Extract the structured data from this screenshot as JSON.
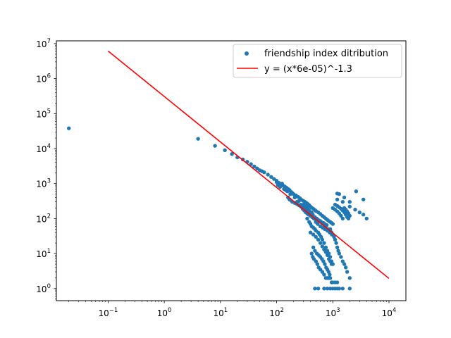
{
  "chart_data": {
    "type": "scatter",
    "title": "",
    "xlabel": "",
    "ylabel": "",
    "xscale": "log",
    "yscale": "log",
    "xlim": [
      0.012,
      20000
    ],
    "ylim": [
      0.45,
      12000000
    ],
    "grid": false,
    "legend_position": "top-right",
    "x_ticks": [
      {
        "base": "10",
        "exp": "−1",
        "value": 0.1
      },
      {
        "base": "10",
        "exp": "0",
        "value": 1
      },
      {
        "base": "10",
        "exp": "1",
        "value": 10
      },
      {
        "base": "10",
        "exp": "2",
        "value": 100
      },
      {
        "base": "10",
        "exp": "3",
        "value": 1000
      },
      {
        "base": "10",
        "exp": "4",
        "value": 10000
      }
    ],
    "y_ticks": [
      {
        "base": "10",
        "exp": "0",
        "value": 1
      },
      {
        "base": "10",
        "exp": "1",
        "value": 10
      },
      {
        "base": "10",
        "exp": "2",
        "value": 100
      },
      {
        "base": "10",
        "exp": "3",
        "value": 1000
      },
      {
        "base": "10",
        "exp": "4",
        "value": 10000
      },
      {
        "base": "10",
        "exp": "5",
        "value": 100000
      },
      {
        "base": "10",
        "exp": "6",
        "value": 1000000
      },
      {
        "base": "10",
        "exp": "7",
        "value": 10000000
      }
    ],
    "series": [
      {
        "name": "friendship index ditribution",
        "kind": "scatter",
        "color": "#1f77b4",
        "points": [
          [
            0.02,
            38000
          ],
          [
            4,
            19000
          ],
          [
            8,
            12000
          ],
          [
            12,
            9000
          ],
          [
            16,
            7000
          ],
          [
            20,
            5600
          ],
          [
            25,
            4900
          ],
          [
            30,
            4200
          ],
          [
            35,
            3600
          ],
          [
            40,
            3100
          ],
          [
            45,
            2700
          ],
          [
            50,
            2400
          ],
          [
            55,
            2250
          ],
          [
            60,
            2100
          ],
          [
            70,
            1800
          ],
          [
            80,
            1550
          ],
          [
            90,
            1350
          ],
          [
            100,
            1200
          ],
          [
            110,
            1050
          ],
          [
            120,
            950
          ],
          [
            130,
            880
          ],
          [
            140,
            820
          ],
          [
            150,
            760
          ],
          [
            160,
            700
          ],
          [
            170,
            650
          ],
          [
            180,
            580
          ],
          [
            190,
            540
          ],
          [
            200,
            500
          ],
          [
            220,
            460
          ],
          [
            240,
            420
          ],
          [
            260,
            380
          ],
          [
            280,
            340
          ],
          [
            300,
            320
          ],
          [
            320,
            300
          ],
          [
            340,
            280
          ],
          [
            360,
            260
          ],
          [
            380,
            240
          ],
          [
            400,
            220
          ],
          [
            420,
            205
          ],
          [
            450,
            190
          ],
          [
            480,
            175
          ],
          [
            500,
            165
          ],
          [
            550,
            150
          ],
          [
            600,
            135
          ],
          [
            650,
            120
          ],
          [
            700,
            110
          ],
          [
            750,
            100
          ],
          [
            800,
            92
          ],
          [
            850,
            85
          ],
          [
            900,
            80
          ],
          [
            950,
            75
          ],
          [
            1000,
            70
          ],
          [
            100,
            1100
          ],
          [
            105,
            900
          ],
          [
            115,
            800
          ],
          [
            125,
            1000
          ],
          [
            135,
            700
          ],
          [
            145,
            650
          ],
          [
            155,
            600
          ],
          [
            175,
            500
          ],
          [
            185,
            520
          ],
          [
            210,
            400
          ],
          [
            230,
            300
          ],
          [
            250,
            320
          ],
          [
            270,
            250
          ],
          [
            290,
            230
          ],
          [
            310,
            200
          ],
          [
            330,
            180
          ],
          [
            350,
            170
          ],
          [
            370,
            150
          ],
          [
            390,
            130
          ],
          [
            410,
            120
          ],
          [
            430,
            110
          ],
          [
            460,
            100
          ],
          [
            490,
            95
          ],
          [
            520,
            90
          ],
          [
            560,
            85
          ],
          [
            620,
            80
          ],
          [
            680,
            75
          ],
          [
            720,
            70
          ],
          [
            780,
            65
          ],
          [
            160,
            400
          ],
          [
            170,
            350
          ],
          [
            180,
            330
          ],
          [
            190,
            300
          ],
          [
            210,
            280
          ],
          [
            230,
            260
          ],
          [
            250,
            240
          ],
          [
            270,
            220
          ],
          [
            290,
            190
          ],
          [
            310,
            170
          ],
          [
            330,
            150
          ],
          [
            350,
            140
          ],
          [
            370,
            130
          ],
          [
            400,
            120
          ],
          [
            430,
            110
          ],
          [
            460,
            100
          ],
          [
            500,
            80
          ],
          [
            540,
            70
          ],
          [
            600,
            60
          ],
          [
            660,
            55
          ],
          [
            720,
            50
          ],
          [
            800,
            45
          ],
          [
            880,
            40
          ],
          [
            960,
            35
          ],
          [
            300,
            250
          ],
          [
            320,
            230
          ],
          [
            340,
            210
          ],
          [
            360,
            190
          ],
          [
            380,
            170
          ],
          [
            420,
            150
          ],
          [
            440,
            130
          ],
          [
            480,
            110
          ],
          [
            520,
            100
          ],
          [
            560,
            90
          ],
          [
            600,
            85
          ],
          [
            640,
            75
          ],
          [
            680,
            70
          ],
          [
            740,
            60
          ],
          [
            820,
            50
          ],
          [
            900,
            45
          ],
          [
            350,
            100
          ],
          [
            380,
            80
          ],
          [
            400,
            70
          ],
          [
            420,
            60
          ],
          [
            450,
            55
          ],
          [
            480,
            50
          ],
          [
            500,
            45
          ],
          [
            550,
            40
          ],
          [
            580,
            35
          ],
          [
            620,
            30
          ],
          [
            650,
            25
          ],
          [
            700,
            20
          ],
          [
            750,
            15
          ],
          [
            800,
            12
          ],
          [
            850,
            10
          ],
          [
            900,
            8
          ],
          [
            950,
            6
          ],
          [
            1000,
            5
          ],
          [
            400,
            40
          ],
          [
            450,
            35
          ],
          [
            500,
            30
          ],
          [
            550,
            25
          ],
          [
            600,
            20
          ],
          [
            650,
            16
          ],
          [
            700,
            13
          ],
          [
            750,
            11
          ],
          [
            800,
            9
          ],
          [
            850,
            7
          ],
          [
            900,
            6
          ],
          [
            950,
            5
          ],
          [
            450,
            15
          ],
          [
            480,
            12
          ],
          [
            520,
            10
          ],
          [
            560,
            9
          ],
          [
            600,
            8
          ],
          [
            640,
            7
          ],
          [
            680,
            6
          ],
          [
            720,
            5
          ],
          [
            760,
            4
          ],
          [
            800,
            3.5
          ],
          [
            840,
            3
          ],
          [
            880,
            2.5
          ],
          [
            420,
            10
          ],
          [
            440,
            8
          ],
          [
            460,
            7
          ],
          [
            500,
            6
          ],
          [
            530,
            5
          ],
          [
            560,
            4
          ],
          [
            600,
            3.5
          ],
          [
            650,
            3
          ],
          [
            700,
            2.5
          ],
          [
            750,
            2
          ],
          [
            800,
            2
          ],
          [
            850,
            2
          ],
          [
            900,
            2
          ],
          [
            950,
            1.5
          ],
          [
            1000,
            1.5
          ],
          [
            1100,
            1.5
          ],
          [
            1200,
            1.5
          ],
          [
            480,
            1
          ],
          [
            550,
            1
          ],
          [
            700,
            1
          ],
          [
            800,
            1
          ],
          [
            900,
            1
          ],
          [
            1000,
            1
          ],
          [
            1100,
            1
          ],
          [
            1200,
            1
          ],
          [
            1300,
            1
          ],
          [
            1500,
            1
          ],
          [
            2000,
            1
          ],
          [
            1000,
            200
          ],
          [
            1100,
            180
          ],
          [
            1200,
            160
          ],
          [
            1300,
            140
          ],
          [
            1400,
            120
          ],
          [
            1500,
            100
          ],
          [
            1600,
            150
          ],
          [
            1700,
            130
          ],
          [
            1800,
            110
          ],
          [
            1900,
            100
          ],
          [
            1100,
            250
          ],
          [
            1200,
            230
          ],
          [
            1300,
            210
          ],
          [
            1400,
            190
          ],
          [
            1500,
            170
          ],
          [
            1600,
            200
          ],
          [
            1700,
            180
          ],
          [
            1800,
            160
          ],
          [
            1900,
            140
          ],
          [
            2000,
            120
          ],
          [
            1200,
            350
          ],
          [
            1500,
            300
          ],
          [
            2000,
            220
          ],
          [
            2500,
            180
          ],
          [
            3000,
            150
          ],
          [
            3500,
            130
          ],
          [
            1300,
            500
          ],
          [
            1600,
            400
          ],
          [
            2000,
            300
          ],
          [
            2600,
            600
          ],
          [
            3500,
            350
          ],
          [
            1200,
            520
          ],
          [
            4000,
            100
          ],
          [
            900,
            50
          ],
          [
            950,
            40
          ],
          [
            1000,
            35
          ],
          [
            1050,
            30
          ],
          [
            1100,
            25
          ],
          [
            1150,
            20
          ],
          [
            1200,
            15
          ],
          [
            1250,
            12
          ],
          [
            1300,
            10
          ],
          [
            1400,
            8
          ],
          [
            1500,
            6
          ],
          [
            1600,
            5
          ],
          [
            1700,
            4
          ],
          [
            1800,
            3
          ],
          [
            2000,
            2
          ]
        ]
      },
      {
        "name": "y = (x*6e-05)^-1.3",
        "kind": "line",
        "color": "#ff0000",
        "x": [
          0.1,
          10000
        ],
        "formula": "y = (x*6e-05)^-1.3"
      }
    ]
  }
}
